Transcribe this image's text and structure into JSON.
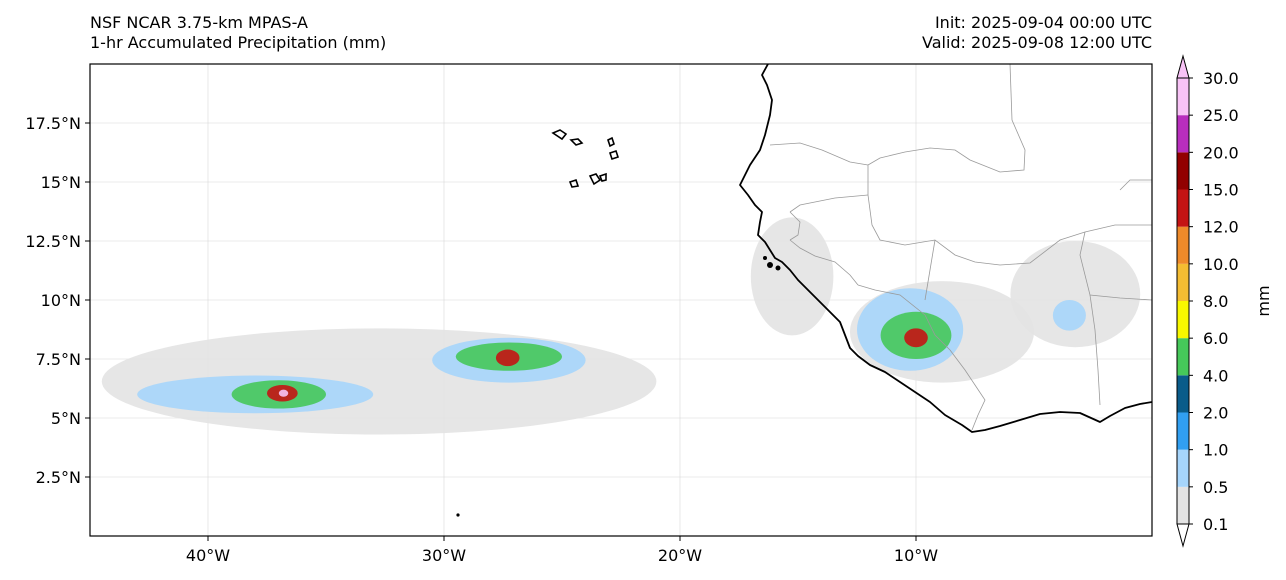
{
  "header": {
    "model_name": "NSF NCAR 3.75-km MPAS-A",
    "field_name": "1-hr Accumulated Precipitation (mm)",
    "init_time": "Init: 2025-09-04 00:00 UTC",
    "valid_time": "Valid: 2025-09-08 12:00 UTC"
  },
  "map": {
    "lon_range": [
      -45,
      0
    ],
    "lat_range": [
      0,
      20
    ],
    "lon_ticks": [
      {
        "value": -40,
        "label": "40°W"
      },
      {
        "value": -30,
        "label": "30°W"
      },
      {
        "value": -20,
        "label": "20°W"
      },
      {
        "value": -10,
        "label": "10°W"
      }
    ],
    "lat_ticks": [
      {
        "value": 2.5,
        "label": "2.5°N"
      },
      {
        "value": 5,
        "label": "5°N"
      },
      {
        "value": 7.5,
        "label": "7.5°N"
      },
      {
        "value": 10,
        "label": "10°N"
      },
      {
        "value": 12.5,
        "label": "12.5°N"
      },
      {
        "value": 15,
        "label": "15°N"
      },
      {
        "value": 17.5,
        "label": "17.5°N"
      }
    ],
    "gridlines": true,
    "precip_areas": [
      {
        "lon": [
          -44.5,
          -21
        ],
        "lat": [
          4.3,
          8.8
        ],
        "level": 0.1
      },
      {
        "lon": [
          -12.8,
          -5
        ],
        "lat": [
          6.5,
          10.8
        ],
        "level": 0.1
      },
      {
        "lon": [
          -6,
          -0.5
        ],
        "lat": [
          8,
          12.5
        ],
        "level": 0.1
      },
      {
        "lon": [
          -17,
          -13.5
        ],
        "lat": [
          8.5,
          13.5
        ],
        "level": 0.1
      },
      {
        "lon": [
          -43,
          -33
        ],
        "lat": [
          5.2,
          6.8
        ],
        "level": 0.5
      },
      {
        "lon": [
          -30.5,
          -24
        ],
        "lat": [
          6.5,
          8.4
        ],
        "level": 0.5
      },
      {
        "lon": [
          -12.5,
          -8
        ],
        "lat": [
          7,
          10.5
        ],
        "level": 0.5
      },
      {
        "lon": [
          -4.2,
          -2.8
        ],
        "lat": [
          8.7,
          10
        ],
        "level": 0.5
      },
      {
        "lon": [
          -39,
          -35
        ],
        "lat": [
          5.4,
          6.6
        ],
        "level": 4.0
      },
      {
        "lon": [
          -29.5,
          -25
        ],
        "lat": [
          7,
          8.2
        ],
        "level": 4.0
      },
      {
        "lon": [
          -11.5,
          -8.5
        ],
        "lat": [
          7.5,
          9.5
        ],
        "level": 4.0
      },
      {
        "lon": [
          -37.5,
          -36.2
        ],
        "lat": [
          5.7,
          6.4
        ],
        "level": 12.0
      },
      {
        "lon": [
          -27.8,
          -26.8
        ],
        "lat": [
          7.2,
          7.9
        ],
        "level": 12.0
      },
      {
        "lon": [
          -10.5,
          -9.5
        ],
        "lat": [
          8,
          8.8
        ],
        "level": 12.0
      },
      {
        "lon": [
          -37,
          -36.6
        ],
        "lat": [
          5.9,
          6.2
        ],
        "level": 25.0
      }
    ],
    "coastline_color": "#000000",
    "border_color": "#9a9a9a"
  },
  "colorbar": {
    "unit_label": "mm",
    "levels": [
      "0.1",
      "0.5",
      "1.0",
      "2.0",
      "4.0",
      "6.0",
      "8.0",
      "10.0",
      "12.0",
      "15.0",
      "20.0",
      "25.0",
      "30.0"
    ],
    "colors": [
      "#e3e3e3",
      "#a6d5fb",
      "#319ff1",
      "#0a5c8a",
      "#46c85a",
      "#f8f800",
      "#f4bc32",
      "#ee8a2a",
      "#c41414",
      "#920000",
      "#b82ebd",
      "#f8c3f6"
    ],
    "extend": "both"
  }
}
